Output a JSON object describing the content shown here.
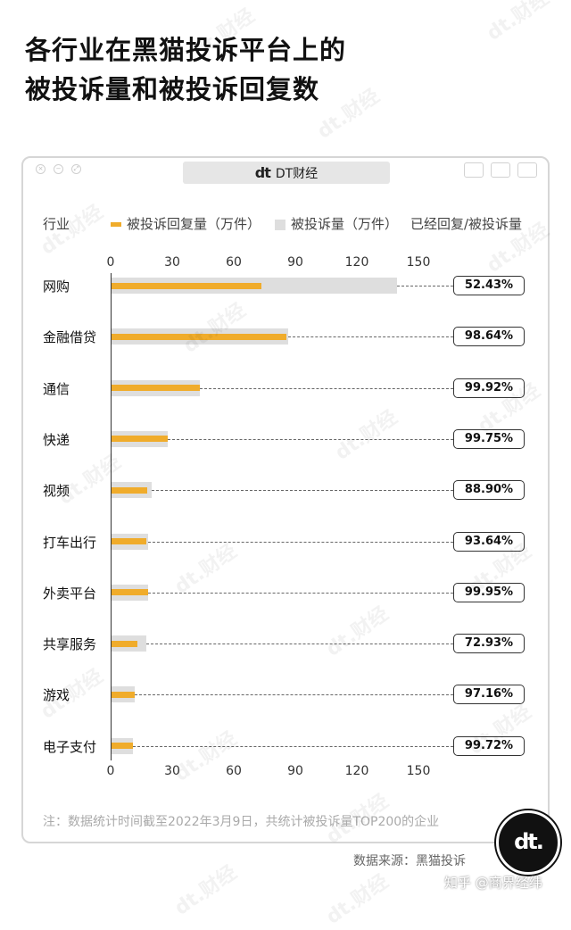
{
  "title_lines": [
    "各行业在黑猫投诉平台上的",
    "被投诉量和被投诉回复数"
  ],
  "window": {
    "tab_title": "DT财经",
    "tab_logo": "dt"
  },
  "legend": {
    "category_header": "行业",
    "replied_label": "被投诉回复量（万件）",
    "total_label": "被投诉量（万件）",
    "ratio_label": "已经回复/被投诉量"
  },
  "colors": {
    "replied": "#f0ac2b",
    "total": "#dedede",
    "ink": "#111111"
  },
  "chart_data": {
    "type": "bar",
    "orientation": "horizontal",
    "xlim": [
      0,
      150
    ],
    "ticks": [
      0,
      30,
      60,
      90,
      120,
      150
    ],
    "categories": [
      "网购",
      "金融借贷",
      "通信",
      "快递",
      "视频",
      "打车出行",
      "外卖平台",
      "共享服务",
      "游戏",
      "电子支付"
    ],
    "series": [
      {
        "name": "被投诉量（万件）",
        "values": [
          139,
          86,
          43,
          27.5,
          19.5,
          18,
          18,
          17,
          11.5,
          10.5
        ]
      },
      {
        "name": "被投诉回复量（万件）",
        "values": [
          73,
          85,
          43,
          27.4,
          17.3,
          16.9,
          18,
          12.4,
          11.2,
          10.5
        ]
      }
    ],
    "ratios": [
      "52.43%",
      "98.64%",
      "99.92%",
      "99.75%",
      "88.90%",
      "93.64%",
      "99.95%",
      "72.93%",
      "97.16%",
      "99.72%"
    ]
  },
  "note": "注：数据统计时间截至2022年3月9日，共统计被投诉量TOP200的企业",
  "source": "数据来源：黑猫投诉",
  "zhihu_watermark": "知乎 @商界经纬",
  "badge_logo": "dt.",
  "watermark_text": "dt.财经"
}
